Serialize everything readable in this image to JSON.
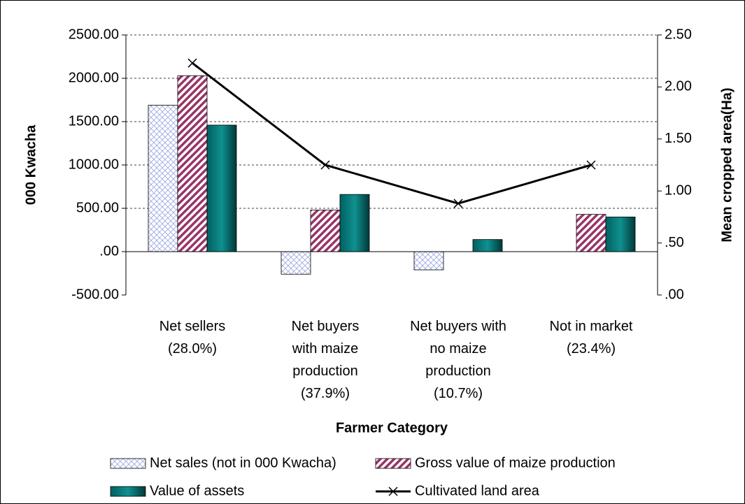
{
  "chart_data": {
    "type": "bar",
    "x_label": "Farmer Category",
    "y_label": "000 Kwacha",
    "y2_label": "Mean cropped area(Ha)",
    "categories": [
      "Net sellers\n(28.0%)",
      "Net buyers\nwith maize\nproduction\n(37.9%)",
      "Net buyers with\nno maize\nproduction\n(10.7%)",
      "Not in market\n(23.4%)"
    ],
    "series": [
      {
        "name": "Net sales (not in 000 Kwacha)",
        "color": "#c8d0f0",
        "values": [
          1690,
          -260,
          -210,
          null
        ]
      },
      {
        "name": "Gross value of maize production",
        "color": "#993366",
        "values": [
          2030,
          480,
          null,
          430
        ]
      },
      {
        "name": "Value of assets",
        "color": "#008080",
        "values": [
          1460,
          660,
          140,
          400
        ]
      },
      {
        "name": "Cultivated land area",
        "color": "#000000",
        "type": "line",
        "axis": "y2",
        "values": [
          2.23,
          1.25,
          0.88,
          1.25
        ]
      }
    ],
    "ylim": [
      -500,
      2500
    ],
    "yticks": [
      {
        "value": 2500,
        "label": "2500.00"
      },
      {
        "value": 2000,
        "label": "2000.00"
      },
      {
        "value": 1500,
        "label": "1500.00"
      },
      {
        "value": 1000,
        "label": "1000.00"
      },
      {
        "value": 500,
        "label": "500.00"
      },
      {
        "value": 0,
        "label": ".00"
      },
      {
        "value": -500,
        "label": "-500.00"
      }
    ],
    "y2lim": [
      0,
      2.5
    ],
    "y2ticks": [
      {
        "value": 2.5,
        "label": "2.50"
      },
      {
        "value": 2,
        "label": "2.00"
      },
      {
        "value": 1.5,
        "label": "1.50"
      },
      {
        "value": 1,
        "label": "1.00"
      },
      {
        "value": 0.5,
        "label": ".50"
      },
      {
        "value": 0,
        "label": ".00"
      }
    ],
    "grid": true
  }
}
